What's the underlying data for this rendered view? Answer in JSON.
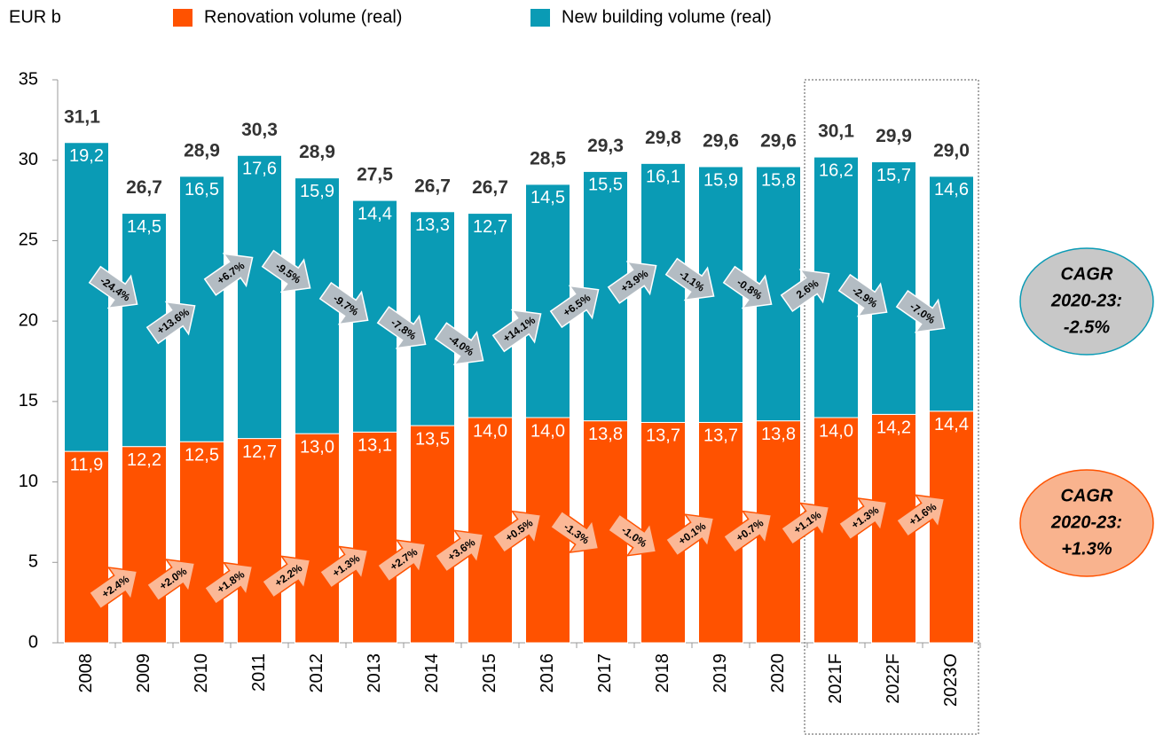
{
  "chart_data": {
    "type": "stacked_bar",
    "unit_label": "EUR b",
    "categories": [
      "2008",
      "2009",
      "2010",
      "2011",
      "2012",
      "2013",
      "2014",
      "2015",
      "2016",
      "2017",
      "2018",
      "2019",
      "2020",
      "2021F",
      "2022F",
      "2023O"
    ],
    "series": [
      {
        "name": "Renovation volume (real)",
        "color": "#ff5200",
        "values": [
          11.9,
          12.2,
          12.5,
          12.7,
          13.0,
          13.1,
          13.5,
          14.0,
          14.0,
          13.8,
          13.7,
          13.7,
          13.8,
          14.0,
          14.2,
          14.4
        ],
        "value_labels": [
          "11,9",
          "12,2",
          "12,5",
          "12,7",
          "13,0",
          "13,1",
          "13,5",
          "14,0",
          "14,0",
          "13,8",
          "13,7",
          "13,7",
          "13,8",
          "14,0",
          "14,2",
          "14,4"
        ],
        "growth_labels": [
          "+2.4%",
          "+2.0%",
          "+1.8%",
          "+2.2%",
          "+1.3%",
          "+2.7%",
          "+3.6%",
          "+0.5%",
          "-1.3%",
          "-1.0%",
          "+0.1%",
          "+0.7%",
          "+1.1%",
          "+1.3%",
          "+1.6%"
        ],
        "cagr": [
          "CAGR",
          "2020-23:",
          "+1.3%"
        ]
      },
      {
        "name": "New building volume (real)",
        "color": "#0a9bb5",
        "values": [
          19.2,
          14.5,
          16.5,
          17.6,
          15.9,
          14.4,
          13.3,
          12.7,
          14.5,
          15.5,
          16.1,
          15.9,
          15.8,
          16.2,
          15.7,
          14.6
        ],
        "value_labels": [
          "19,2",
          "14,5",
          "16,5",
          "17,6",
          "15,9",
          "14,4",
          "13,3",
          "12,7",
          "14,5",
          "15,5",
          "16,1",
          "15,9",
          "15,8",
          "16,2",
          "15,7",
          "14,6"
        ],
        "growth_labels": [
          "-24.4%",
          "+13.6%",
          "+6.7%",
          "-9.5%",
          "-9.7%",
          "-7.8%",
          "-4.0%",
          "+14.1%",
          "+6.5%",
          "+3.9%",
          "-1.1%",
          "-0.8%",
          "2.6%",
          "-2.9%",
          "-7.0%"
        ],
        "cagr": [
          "CAGR",
          "2020-23:",
          "-2.5%"
        ]
      }
    ],
    "totals": [
      31.1,
      26.7,
      28.9,
      30.3,
      28.9,
      27.5,
      26.7,
      26.7,
      28.5,
      29.3,
      29.8,
      29.6,
      29.6,
      30.1,
      29.9,
      29.0
    ],
    "total_labels": [
      "31,1",
      "26,7",
      "28,9",
      "30,3",
      "28,9",
      "27,5",
      "26,7",
      "26,7",
      "28,5",
      "29,3",
      "29,8",
      "29,6",
      "29,6",
      "30,1",
      "29,9",
      "29,0"
    ],
    "ylim": [
      0,
      35
    ],
    "yticks": [
      0,
      5,
      10,
      15,
      20,
      25,
      30,
      35
    ]
  }
}
